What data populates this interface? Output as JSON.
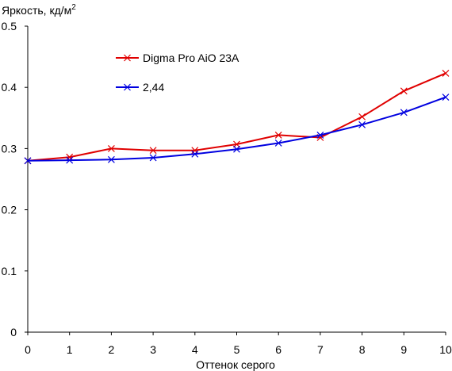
{
  "chart_data": {
    "type": "line",
    "ylabel": "Яркость, кд/м",
    "ylabel_sup": "2",
    "xlabel": "Оттенок серого",
    "x": [
      0,
      1,
      2,
      3,
      4,
      5,
      6,
      7,
      8,
      9,
      10
    ],
    "xlim": [
      0,
      10
    ],
    "ylim": [
      0,
      0.5
    ],
    "x_ticks": [
      "0",
      "1",
      "2",
      "3",
      "4",
      "5",
      "6",
      "7",
      "8",
      "9",
      "10"
    ],
    "y_ticks": [
      "0",
      "0.1",
      "0.2",
      "0.3",
      "0.4",
      "0.5"
    ],
    "grid": false,
    "legend_position": "top-left",
    "series": [
      {
        "name": "Digma Pro AiO 23A",
        "color": "#e00000",
        "marker": "x",
        "values": [
          0.28,
          0.286,
          0.3,
          0.297,
          0.297,
          0.307,
          0.322,
          0.318,
          0.352,
          0.394,
          0.423
        ]
      },
      {
        "name": "2,44",
        "color": "#0000e0",
        "marker": "x",
        "values": [
          0.28,
          0.281,
          0.282,
          0.285,
          0.291,
          0.299,
          0.309,
          0.322,
          0.339,
          0.359,
          0.384
        ]
      }
    ]
  }
}
